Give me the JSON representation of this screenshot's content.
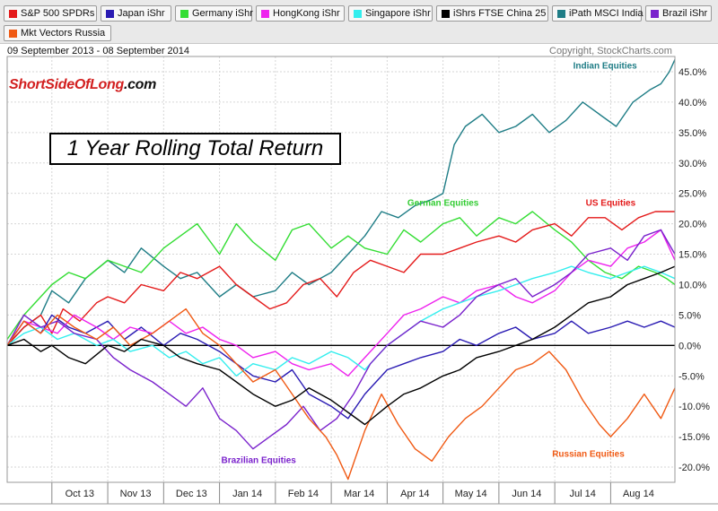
{
  "legend": [
    {
      "label": "S&P 500 SPDRs",
      "color": "#e41a1a"
    },
    {
      "label": "Japan iShr",
      "color": "#2a1bb3"
    },
    {
      "label": "Germany iShr",
      "color": "#33dd33"
    },
    {
      "label": "HongKong iShr",
      "color": "#ee22ee"
    },
    {
      "label": "Singapore iShr",
      "color": "#33eeee"
    },
    {
      "label": "iShrs FTSE China 25",
      "color": "#000000"
    },
    {
      "label": "iPath MSCI India",
      "color": "#1f7d86"
    },
    {
      "label": "Brazil iShr",
      "color": "#7a22cc"
    },
    {
      "label": "Mkt Vectors Russia",
      "color": "#f05a14"
    }
  ],
  "header": {
    "date_range": "09 September 2013 - 08 September 2014",
    "copyright": "Copyright, StockCharts.com"
  },
  "brand": {
    "part1": "ShortSideOfLong",
    "part2": ".com"
  },
  "chart_data": {
    "type": "line",
    "title": "1 Year Rolling Total Return",
    "xlabel": "",
    "ylabel": "",
    "ylim": [
      -22.5,
      47.5
    ],
    "y_ticks": [
      "45.0%",
      "40.0%",
      "35.0%",
      "30.0%",
      "25.0%",
      "20.0%",
      "15.0%",
      "10.0%",
      "5.0%",
      "0.0%",
      "-5.0%",
      "-10.0%",
      "-15.0%",
      "-20.0%"
    ],
    "y_tick_values": [
      45,
      40,
      35,
      30,
      25,
      20,
      15,
      10,
      5,
      0,
      -5,
      -10,
      -15,
      -20
    ],
    "x_tick_labels": [
      "Oct 13",
      "Nov 13",
      "Dec 13",
      "Jan 14",
      "Feb 14",
      "Mar 14",
      "Apr 14",
      "May 14",
      "Jun 14",
      "Jul 14",
      "Aug 14"
    ],
    "x_tick_positions": [
      1,
      2,
      3,
      4,
      5,
      6,
      7,
      8,
      9,
      10,
      11
    ],
    "x_range": [
      0.2,
      12.15
    ],
    "grid": true,
    "annotations": [
      {
        "text": "Indian Equities",
        "x": 10.9,
        "y": 45.5,
        "color": "#1f7d86"
      },
      {
        "text": "German Equities",
        "x": 8.0,
        "y": 23.0,
        "color": "#33cc33"
      },
      {
        "text": "US Equities",
        "x": 11.0,
        "y": 23.0,
        "color": "#e41a1a"
      },
      {
        "text": "Brazilian Equities",
        "x": 4.7,
        "y": -19.3,
        "color": "#7a22cc"
      },
      {
        "text": "Russian Equities",
        "x": 10.6,
        "y": -18.3,
        "color": "#f05a14"
      }
    ],
    "series": [
      {
        "name": "S&P 500 SPDRs",
        "color": "#e41a1a",
        "x": [
          0.2,
          0.5,
          0.8,
          1.0,
          1.2,
          1.5,
          1.8,
          2.0,
          2.3,
          2.6,
          3.0,
          3.3,
          3.6,
          4.0,
          4.3,
          4.6,
          4.9,
          5.2,
          5.5,
          5.8,
          6.1,
          6.4,
          6.7,
          7.0,
          7.3,
          7.6,
          8.0,
          8.3,
          8.6,
          9.0,
          9.3,
          9.6,
          10.0,
          10.3,
          10.6,
          10.9,
          11.2,
          11.5,
          11.8,
          12.0,
          12.15
        ],
        "values": [
          0,
          3,
          5,
          2,
          6,
          4,
          7,
          8,
          7,
          10,
          9,
          12,
          11,
          13,
          10,
          8,
          6,
          7,
          10,
          11,
          8,
          12,
          14,
          13,
          12,
          15,
          15,
          16,
          17,
          18,
          17,
          19,
          20,
          18,
          21,
          21,
          19,
          21,
          22,
          22,
          22
        ]
      },
      {
        "name": "Japan iShr",
        "color": "#2a1bb3",
        "x": [
          0.2,
          0.5,
          0.8,
          1.0,
          1.3,
          1.6,
          2.0,
          2.3,
          2.6,
          3.0,
          3.3,
          3.6,
          4.0,
          4.3,
          4.6,
          5.0,
          5.3,
          5.6,
          6.0,
          6.3,
          6.6,
          7.0,
          7.3,
          7.6,
          8.0,
          8.3,
          8.6,
          9.0,
          9.3,
          9.6,
          10.0,
          10.3,
          10.6,
          11.0,
          11.3,
          11.6,
          11.9,
          12.15
        ],
        "values": [
          0,
          4,
          2,
          5,
          3,
          2,
          4,
          1,
          3,
          0,
          2,
          1,
          -1,
          -3,
          -5,
          -6,
          -4,
          -8,
          -10,
          -12,
          -8,
          -4,
          -3,
          -2,
          -1,
          1,
          0,
          2,
          3,
          1,
          2,
          4,
          2,
          3,
          4,
          3,
          4,
          3
        ]
      },
      {
        "name": "Germany iShr",
        "color": "#33dd33",
        "x": [
          0.2,
          0.5,
          0.8,
          1.0,
          1.3,
          1.6,
          2.0,
          2.3,
          2.6,
          3.0,
          3.3,
          3.6,
          4.0,
          4.3,
          4.6,
          5.0,
          5.3,
          5.6,
          6.0,
          6.3,
          6.6,
          7.0,
          7.3,
          7.6,
          8.0,
          8.3,
          8.6,
          9.0,
          9.3,
          9.6,
          10.0,
          10.3,
          10.6,
          10.9,
          11.2,
          11.5,
          11.8,
          12.0,
          12.15
        ],
        "values": [
          1,
          5,
          8,
          10,
          12,
          11,
          14,
          13,
          12,
          16,
          18,
          20,
          15,
          20,
          17,
          14,
          19,
          20,
          16,
          18,
          16,
          15,
          19,
          17,
          20,
          21,
          18,
          21,
          20,
          22,
          19,
          17,
          14,
          12,
          11,
          13,
          12,
          11,
          10
        ]
      },
      {
        "name": "HongKong iShr",
        "color": "#ee22ee",
        "x": [
          0.2,
          0.5,
          0.8,
          1.1,
          1.4,
          1.8,
          2.1,
          2.4,
          2.8,
          3.1,
          3.4,
          3.7,
          4.0,
          4.3,
          4.6,
          5.0,
          5.3,
          5.6,
          6.0,
          6.3,
          6.6,
          7.0,
          7.3,
          7.6,
          8.0,
          8.3,
          8.6,
          9.0,
          9.3,
          9.6,
          10.0,
          10.3,
          10.6,
          11.0,
          11.3,
          11.6,
          11.9,
          12.15
        ],
        "values": [
          0,
          4,
          3,
          2,
          5,
          3,
          1,
          3,
          2,
          4,
          2,
          3,
          1,
          0,
          -2,
          -1,
          -3,
          -4,
          -3,
          -5,
          -2,
          2,
          5,
          6,
          8,
          7,
          9,
          10,
          8,
          7,
          9,
          12,
          14,
          13,
          16,
          17,
          19,
          14
        ]
      },
      {
        "name": "Singapore iShr",
        "color": "#33eeee",
        "x": [
          0.2,
          0.5,
          0.8,
          1.1,
          1.4,
          1.8,
          2.1,
          2.4,
          2.8,
          3.1,
          3.4,
          3.7,
          4.0,
          4.3,
          4.6,
          5.0,
          5.3,
          5.6,
          6.0,
          6.3,
          6.6,
          7.0,
          7.3,
          7.6,
          8.0,
          8.3,
          8.6,
          9.0,
          9.3,
          9.6,
          10.0,
          10.3,
          10.6,
          11.0,
          11.3,
          11.6,
          11.9,
          12.15
        ],
        "values": [
          0,
          2,
          3,
          1,
          2,
          0,
          1,
          -1,
          0,
          -2,
          -1,
          -3,
          -2,
          -5,
          -3,
          -4,
          -2,
          -3,
          -1,
          -2,
          -4,
          0,
          2,
          4,
          6,
          7,
          8,
          9,
          10,
          11,
          12,
          13,
          12,
          11,
          12,
          13,
          12,
          11
        ]
      },
      {
        "name": "iShrs FTSE China 25",
        "color": "#000000",
        "x": [
          0.2,
          0.5,
          0.8,
          1.0,
          1.3,
          1.6,
          2.0,
          2.3,
          2.6,
          3.0,
          3.3,
          3.6,
          4.0,
          4.3,
          4.6,
          5.0,
          5.3,
          5.6,
          6.0,
          6.3,
          6.6,
          7.0,
          7.3,
          7.6,
          8.0,
          8.3,
          8.6,
          9.0,
          9.3,
          9.6,
          10.0,
          10.3,
          10.6,
          11.0,
          11.3,
          11.6,
          11.9,
          12.15
        ],
        "values": [
          0,
          1,
          -1,
          0,
          -2,
          -3,
          0,
          -1,
          1,
          0,
          -2,
          -3,
          -4,
          -6,
          -8,
          -10,
          -9,
          -7,
          -9,
          -11,
          -13,
          -10,
          -8,
          -7,
          -5,
          -4,
          -2,
          -1,
          0,
          1,
          3,
          5,
          7,
          8,
          10,
          11,
          12,
          13
        ]
      },
      {
        "name": "iPath MSCI India",
        "color": "#1f7d86",
        "x": [
          0.2,
          0.5,
          0.8,
          1.0,
          1.3,
          1.6,
          2.0,
          2.3,
          2.6,
          3.0,
          3.3,
          3.6,
          4.0,
          4.3,
          4.6,
          5.0,
          5.3,
          5.6,
          6.0,
          6.3,
          6.6,
          6.9,
          7.2,
          7.5,
          7.8,
          8.0,
          8.2,
          8.4,
          8.7,
          9.0,
          9.3,
          9.6,
          9.9,
          10.2,
          10.5,
          10.8,
          11.1,
          11.4,
          11.7,
          11.9,
          12.05,
          12.15
        ],
        "values": [
          0,
          3,
          5,
          9,
          7,
          11,
          14,
          12,
          16,
          13,
          11,
          12,
          8,
          10,
          8,
          9,
          12,
          10,
          12,
          15,
          18,
          22,
          21,
          23,
          24,
          25,
          33,
          36,
          38,
          35,
          36,
          38,
          35,
          37,
          40,
          38,
          36,
          40,
          42,
          43,
          45,
          47
        ]
      },
      {
        "name": "Brazil iShr",
        "color": "#7a22cc",
        "x": [
          0.2,
          0.5,
          0.8,
          1.1,
          1.4,
          1.8,
          2.1,
          2.4,
          2.8,
          3.1,
          3.4,
          3.7,
          4.0,
          4.3,
          4.6,
          4.9,
          5.2,
          5.5,
          5.8,
          6.1,
          6.4,
          6.7,
          7.0,
          7.3,
          7.6,
          8.0,
          8.3,
          8.6,
          9.0,
          9.3,
          9.6,
          10.0,
          10.3,
          10.6,
          11.0,
          11.3,
          11.6,
          11.9,
          12.15
        ],
        "values": [
          0,
          5,
          3,
          4,
          2,
          1,
          -2,
          -4,
          -6,
          -8,
          -10,
          -7,
          -12,
          -14,
          -17,
          -15,
          -13,
          -10,
          -14,
          -12,
          -8,
          -3,
          0,
          2,
          4,
          3,
          5,
          8,
          10,
          11,
          8,
          10,
          12,
          15,
          16,
          14,
          18,
          19,
          15
        ]
      },
      {
        "name": "Mkt Vectors Russia",
        "color": "#f05a14",
        "x": [
          0.2,
          0.5,
          0.8,
          1.1,
          1.4,
          1.8,
          2.1,
          2.4,
          2.8,
          3.1,
          3.4,
          3.7,
          4.0,
          4.3,
          4.6,
          5.0,
          5.3,
          5.6,
          5.9,
          6.1,
          6.3,
          6.6,
          6.9,
          7.2,
          7.5,
          7.8,
          8.1,
          8.4,
          8.7,
          9.0,
          9.3,
          9.6,
          9.9,
          10.2,
          10.5,
          10.8,
          11.0,
          11.3,
          11.6,
          11.9,
          12.15
        ],
        "values": [
          0,
          4,
          2,
          5,
          3,
          1,
          3,
          0,
          2,
          4,
          6,
          2,
          0,
          -3,
          -6,
          -4,
          -8,
          -12,
          -15,
          -18,
          -22,
          -14,
          -8,
          -13,
          -17,
          -19,
          -15,
          -12,
          -10,
          -7,
          -4,
          -3,
          -1,
          -4,
          -9,
          -13,
          -15,
          -12,
          -8,
          -12,
          -7
        ]
      }
    ]
  }
}
